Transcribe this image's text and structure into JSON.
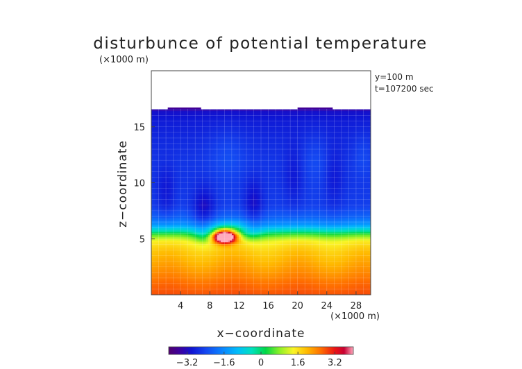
{
  "chart_data": {
    "type": "heatmap",
    "title": "disturbunce of potential temperature",
    "ylabel": "z−coordinate",
    "xlabel": "x−coordinate",
    "y_unit": "(×1000 m)",
    "x_unit": "(×1000 m)",
    "annotations": [
      "y=100 m",
      "t=107200 sec"
    ],
    "xlim": [
      0,
      30
    ],
    "ylim": [
      0,
      20
    ],
    "x_ticks": [
      4,
      8,
      12,
      16,
      20,
      24,
      28
    ],
    "x_tick_labels": [
      "4",
      "8",
      "12",
      "16",
      "20",
      "24",
      "28"
    ],
    "y_ticks": [
      5,
      10,
      15
    ],
    "y_tick_labels": [
      "5",
      "10",
      "15"
    ],
    "field_top_z": 16.6,
    "colorbar": {
      "range": [
        -4,
        4
      ],
      "ticks": [
        -3.2,
        -1.6,
        0,
        1.6,
        3.2
      ],
      "tick_labels": [
        "−3.2",
        "−1.6",
        "0",
        "1.6",
        "3.2"
      ]
    },
    "field_profile": {
      "z": [
        0,
        1,
        2,
        3,
        4,
        4.8,
        5.4,
        5.8,
        6.3,
        7,
        8,
        10,
        12,
        14,
        15.5,
        16.4,
        16.6
      ],
      "value": [
        2.8,
        2.6,
        2.3,
        2.05,
        1.8,
        1.4,
        0.4,
        -0.6,
        -1.5,
        -2.1,
        -2.5,
        -2.6,
        -2.6,
        -2.75,
        -2.9,
        -3.1,
        -3.6
      ]
    },
    "warm_anomaly": {
      "x": 10.0,
      "z": 5.2,
      "value": 3.4
    }
  }
}
